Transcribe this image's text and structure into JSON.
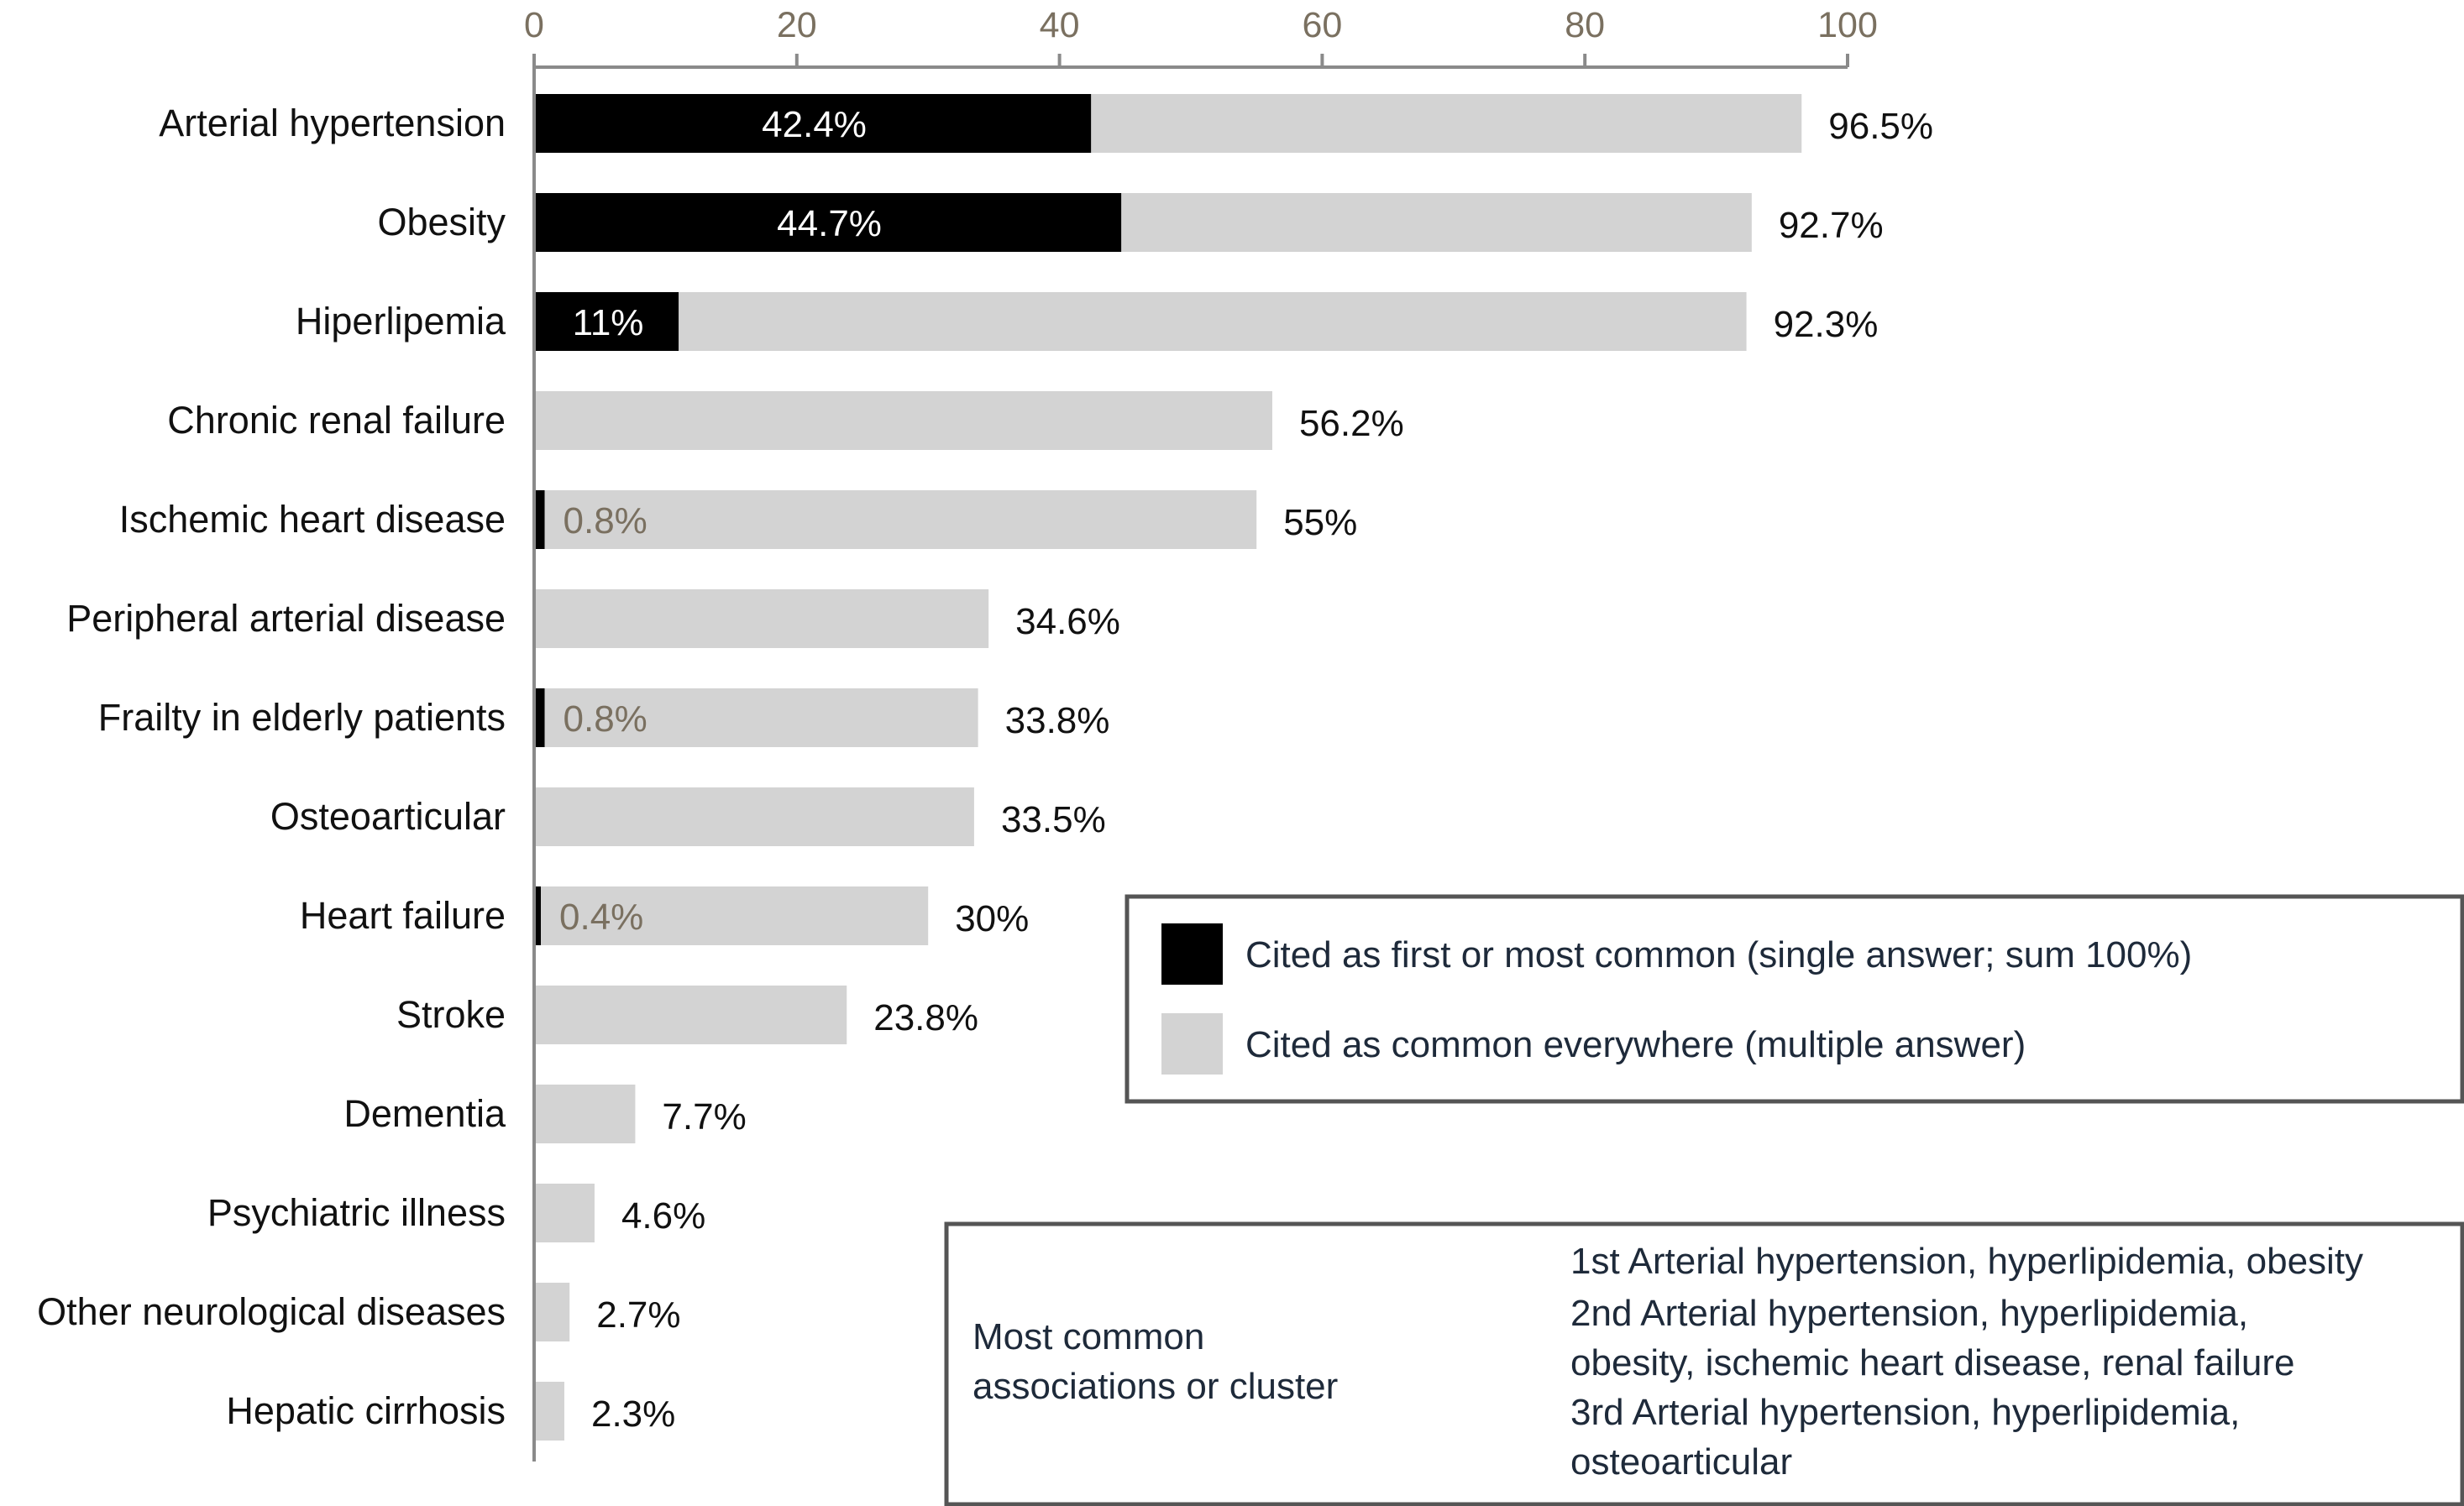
{
  "chart_data": {
    "type": "bar",
    "orientation": "horizontal",
    "stacked": "overlay",
    "xlim": [
      0,
      100
    ],
    "xticks": [
      0,
      20,
      40,
      60,
      80,
      100
    ],
    "categories": [
      "Arterial hypertension",
      "Obesity",
      "Hiperlipemia",
      "Chronic renal failure",
      "Ischemic heart disease",
      "Peripheral arterial disease",
      "Frailty in elderly patients",
      "Osteoarticular",
      "Heart failure",
      "Stroke",
      "Dementia",
      "Psychiatric illness",
      "Other neurological diseases",
      "Hepatic cirrhosis"
    ],
    "series": [
      {
        "name": "Cited as common everywhere (multiple answer)",
        "color": "#d3d3d3",
        "values": [
          96.5,
          92.7,
          92.3,
          56.2,
          55,
          34.6,
          33.8,
          33.5,
          30,
          23.8,
          7.7,
          4.6,
          2.7,
          2.3
        ],
        "labels": [
          "96.5%",
          "92.7%",
          "92.3%",
          "56.2%",
          "55%",
          "34.6%",
          "33.8%",
          "33.5%",
          "30%",
          "23.8%",
          "7.7%",
          "4.6%",
          "2.7%",
          "2.3%"
        ]
      },
      {
        "name": "Cited as first or most common (single answer; sum 100%)",
        "color": "#000000",
        "values": [
          42.4,
          44.7,
          11,
          0,
          0.8,
          0,
          0.8,
          0,
          0.4,
          0,
          0,
          0,
          0,
          0
        ],
        "labels": [
          "42.4%",
          "44.7%",
          "11%",
          "",
          "0.8%",
          "",
          "0.8%",
          "",
          "0.4%",
          "",
          "",
          "",
          "",
          ""
        ]
      }
    ],
    "legend": {
      "position": "right",
      "items": [
        {
          "label": "Cited as first or most common (single answer; sum 100%)",
          "color": "#000000"
        },
        {
          "label": "Cited as common everywhere (multiple answer)",
          "color": "#d3d3d3"
        }
      ]
    },
    "annotation": {
      "title_lines": [
        "Most common",
        "associations or cluster"
      ],
      "lines": [
        "1st Arterial hypertension, hyperlipidemia, obesity",
        "2nd Arterial hypertension, hyperlipidemia,",
        "obesity, ischemic heart disease, renal failure",
        "3rd Arterial hypertension, hyperlipidemia,",
        "osteoarticular"
      ]
    }
  }
}
